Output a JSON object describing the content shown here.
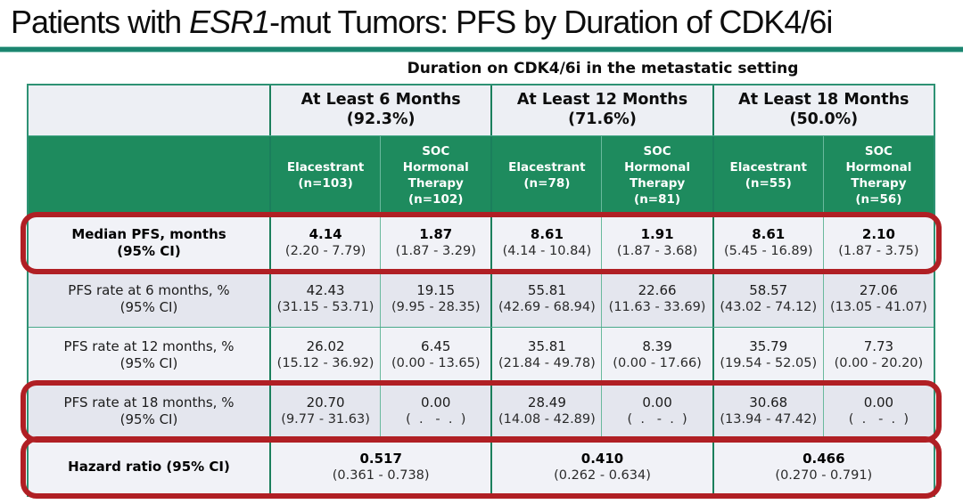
{
  "title": {
    "prefix": "Patients with ",
    "gene": "ESR1",
    "suffix": "-mut Tumors: PFS by Duration of CDK4/6i"
  },
  "colors": {
    "header_green": "#1e8b5e",
    "table_border_teal": "#2e9274",
    "highlight_red": "#b01f24",
    "row_bg_light": "#f1f2f7",
    "row_bg_dark": "#e4e6ee"
  },
  "table": {
    "caption": "Duration on CDK4/6i in the metastatic setting",
    "group_headers": [
      "At Least 6 Months\n(92.3%)",
      "At Least 12 Months\n(71.6%)",
      "At Least 18 Months\n(50.0%)"
    ],
    "column_headers": [
      "Elacestrant\n(n=103)",
      "SOC\nHormonal\nTherapy\n(n=102)",
      "Elacestrant\n(n=78)",
      "SOC\nHormonal\nTherapy\n(n=81)",
      "Elacestrant\n(n=55)",
      "SOC\nHormonal\nTherapy\n(n=56)"
    ],
    "rows": [
      {
        "label": "Median PFS, months\n(95% CI)",
        "highlighted": true,
        "cells": [
          {
            "value": "4.14",
            "ci": "(2.20 - 7.79)"
          },
          {
            "value": "1.87",
            "ci": "(1.87 - 3.29)"
          },
          {
            "value": "8.61",
            "ci": "(4.14 - 10.84)"
          },
          {
            "value": "1.91",
            "ci": "(1.87 - 3.68)"
          },
          {
            "value": "8.61",
            "ci": "(5.45 - 16.89)"
          },
          {
            "value": "2.10",
            "ci": "(1.87 - 3.75)"
          }
        ]
      },
      {
        "label": "PFS rate at 6 months, %\n(95% CI)",
        "highlighted": false,
        "cells": [
          {
            "value": "42.43",
            "ci": "(31.15 - 53.71)"
          },
          {
            "value": "19.15",
            "ci": "(9.95 - 28.35)"
          },
          {
            "value": "55.81",
            "ci": "(42.69 - 68.94)"
          },
          {
            "value": "22.66",
            "ci": "(11.63 - 33.69)"
          },
          {
            "value": "58.57",
            "ci": "(43.02 - 74.12)"
          },
          {
            "value": "27.06",
            "ci": "(13.05 - 41.07)"
          }
        ]
      },
      {
        "label": "PFS rate at 12 months, %\n(95% CI)",
        "highlighted": false,
        "cells": [
          {
            "value": "26.02",
            "ci": "(15.12 - 36.92)"
          },
          {
            "value": "6.45",
            "ci": "(0.00 - 13.65)"
          },
          {
            "value": "35.81",
            "ci": "(21.84 - 49.78)"
          },
          {
            "value": "8.39",
            "ci": "(0.00 - 17.66)"
          },
          {
            "value": "35.79",
            "ci": "(19.54 - 52.05)"
          },
          {
            "value": "7.73",
            "ci": "(0.00 - 20.20)"
          }
        ]
      },
      {
        "label": "PFS rate at 18 months, %\n(95% CI)",
        "highlighted": true,
        "cells": [
          {
            "value": "20.70",
            "ci": "(9.77 - 31.63)"
          },
          {
            "value": "0.00",
            "ci": "(  .   -  .  )"
          },
          {
            "value": "28.49",
            "ci": "(14.08 - 42.89)"
          },
          {
            "value": "0.00",
            "ci": "(  .   -  .  )"
          },
          {
            "value": "30.68",
            "ci": "(13.94 - 47.42)"
          },
          {
            "value": "0.00",
            "ci": "(  .   -  .  )"
          }
        ]
      }
    ],
    "hazard_row": {
      "label": "Hazard ratio (95% CI)",
      "highlighted": true,
      "cells": [
        {
          "value": "0.517",
          "ci": "(0.361 - 0.738)"
        },
        {
          "value": "0.410",
          "ci": "(0.262 - 0.634)"
        },
        {
          "value": "0.466",
          "ci": "(0.270 - 0.791)"
        }
      ]
    }
  }
}
